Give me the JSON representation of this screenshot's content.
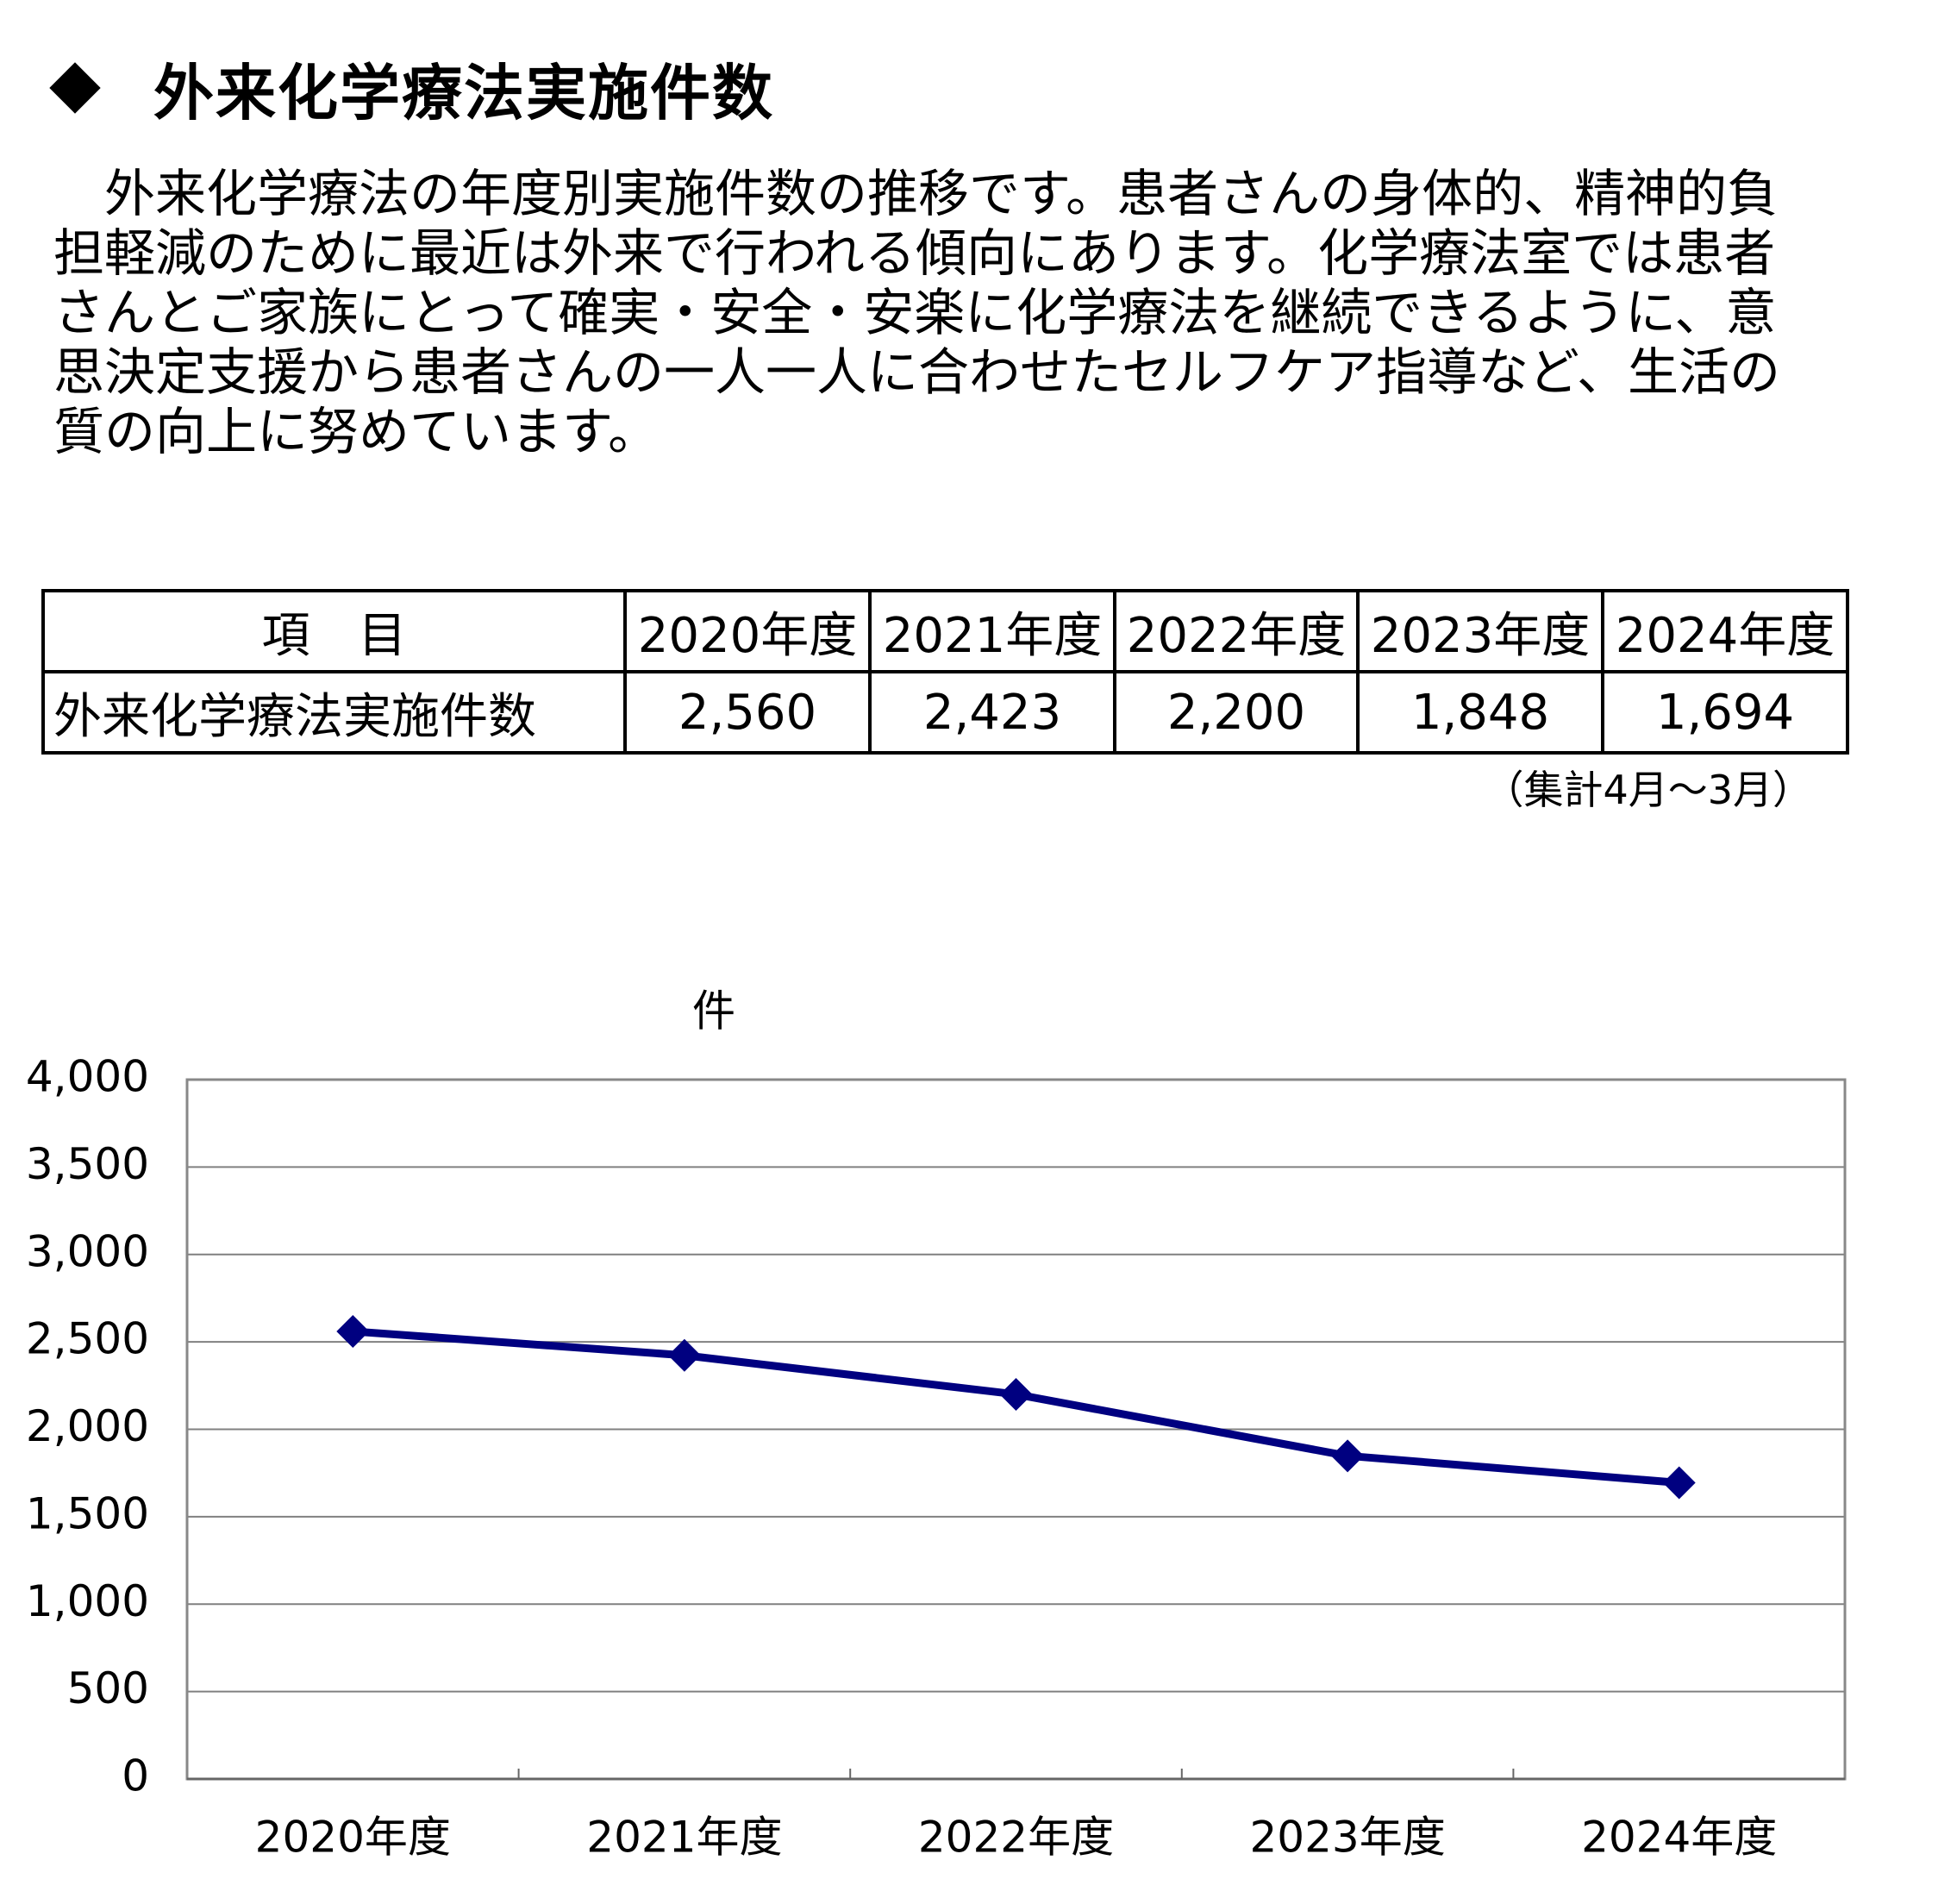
{
  "header": {
    "title": "外来化学療法実施件数"
  },
  "intro": "　外来化学療法の年度別実施件数の推移です。患者さんの身体的、精神的負担軽減のために最近は外来で行われる傾向にあります。化学療法室では患者さんとご家族にとって確実・安全・安楽に化学療法を継続できるように、意思決定支援から患者さんの一人一人に合わせたセルフケア指導など、生活の質の向上に努めています。",
  "table": {
    "columns": [
      "項　目",
      "2020年度",
      "2021年度",
      "2022年度",
      "2023年度",
      "2024年度"
    ],
    "rows": [
      [
        "外来化学療法実施件数",
        "2,560",
        "2,423",
        "2,200",
        "1,848",
        "1,694"
      ]
    ],
    "note": "（集計4月～3月）"
  },
  "chart_data": {
    "type": "line",
    "y_label": "件",
    "categories": [
      "2020年度",
      "2021年度",
      "2022年度",
      "2023年度",
      "2024年度"
    ],
    "values": [
      2560,
      2423,
      2200,
      1848,
      1694
    ],
    "color": "#000080",
    "ylim": [
      0,
      4000
    ],
    "yticks": [
      0,
      500,
      {
        "value": 1000,
        "label": "1,000"
      },
      {
        "value": 1500,
        "label": "1,500"
      },
      {
        "value": 2000,
        "label": "2,000"
      },
      {
        "value": 2500,
        "label": "2,500"
      },
      {
        "value": 3000,
        "label": "3,000"
      },
      {
        "value": 3500,
        "label": "3,500"
      },
      {
        "value": 4000,
        "label": "4,000"
      }
    ],
    "grid": true
  }
}
